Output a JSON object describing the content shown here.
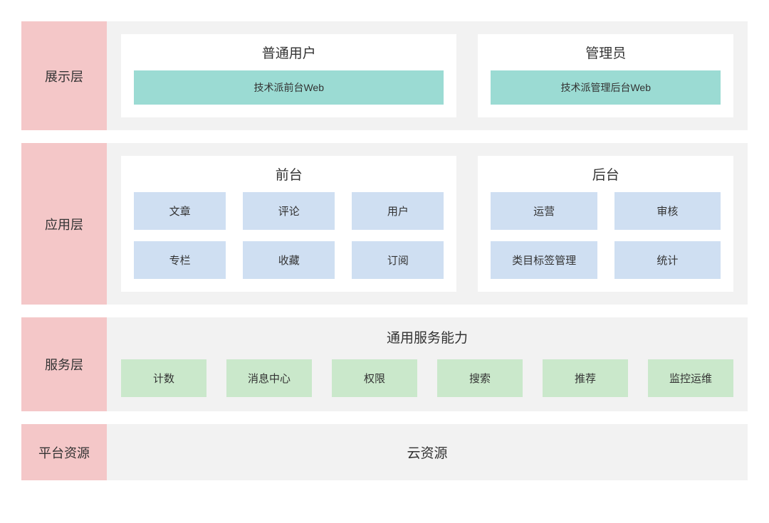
{
  "colors": {
    "label_bg": "#f4c7c8",
    "content_bg": "#f2f2f2",
    "panel_bg": "#ffffff",
    "teal_box": "#9bdbd3",
    "blue_box": "#cfdff2",
    "green_box": "#cae8cb",
    "text": "#333333"
  },
  "layers": {
    "presentation": {
      "label": "展示层",
      "left": {
        "title": "普通用户",
        "box": "技术派前台Web"
      },
      "right": {
        "title": "管理员",
        "box": "技术派管理后台Web"
      }
    },
    "application": {
      "label": "应用层",
      "left": {
        "title": "前台",
        "items": [
          "文章",
          "评论",
          "用户",
          "专栏",
          "收藏",
          "订阅"
        ]
      },
      "right": {
        "title": "后台",
        "items": [
          "运营",
          "审核",
          "类目标签管理",
          "统计"
        ]
      }
    },
    "service": {
      "label": "服务层",
      "title": "通用服务能力",
      "items": [
        "计数",
        "消息中心",
        "权限",
        "搜索",
        "推荐",
        "监控运维"
      ]
    },
    "platform": {
      "label": "平台资源",
      "content": "云资源"
    }
  }
}
